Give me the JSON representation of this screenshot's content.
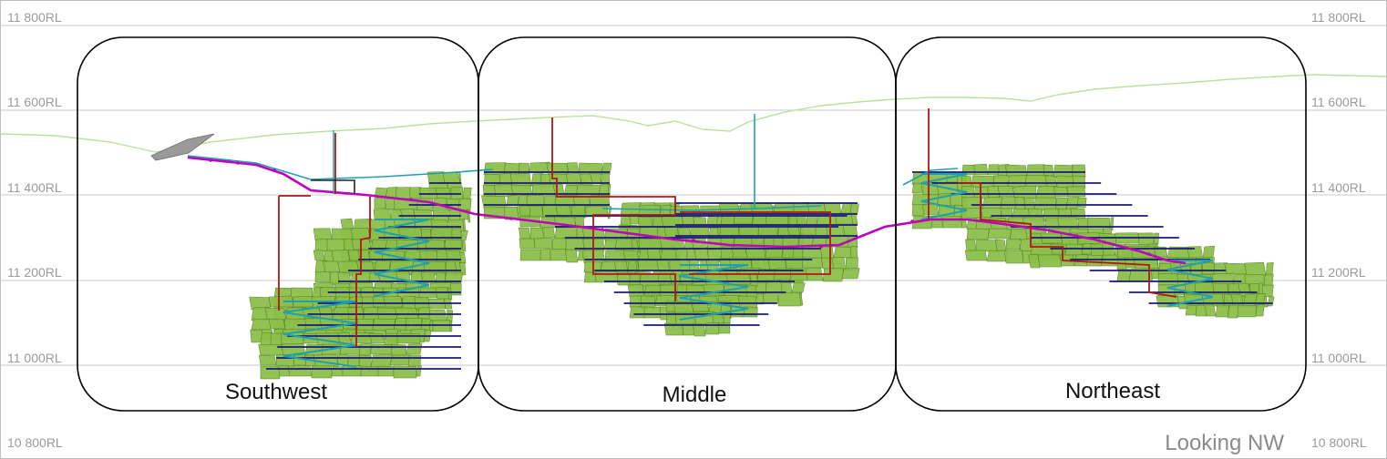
{
  "elevation_labels": [
    "11 800RL",
    "11 600RL",
    "11 400RL",
    "11 200RL",
    "11 000RL",
    "10 800RL"
  ],
  "zones": [
    {
      "id": "southwest",
      "label": "Southwest"
    },
    {
      "id": "middle",
      "label": "Middle"
    },
    {
      "id": "northeast",
      "label": "Northeast"
    }
  ],
  "view_orientation": "Looking NW",
  "colors": {
    "gridline": "#c8c8c8",
    "surface_topography": "#b9e39a",
    "stopes": "#8cbf4a",
    "stopes_edge": "#4f7a22",
    "decline": "#c000c0",
    "development": "#1fa0b0",
    "vent_raise": "#b01818",
    "level_drives": "#1a1a7a",
    "portal": "#9a9a9a",
    "zone_outline": "#000000"
  }
}
